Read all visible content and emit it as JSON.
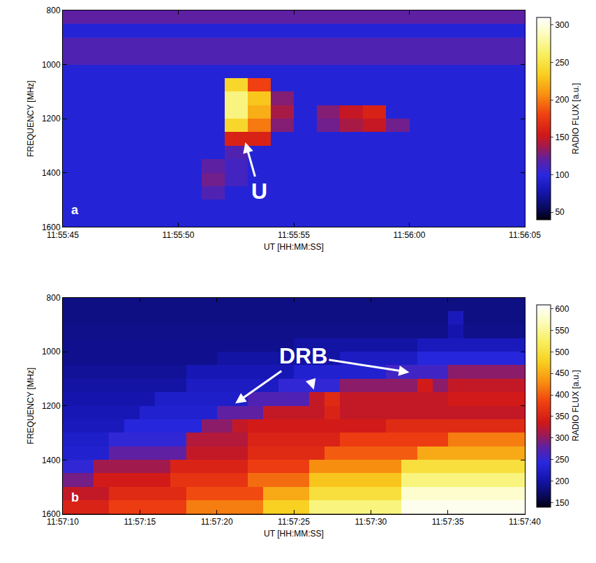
{
  "chart_data": [
    {
      "type": "heatmap",
      "label": "a",
      "x_label": "UT [HH:MM:SS]",
      "y_label": "FREQUENCY [MHz]",
      "x": [
        46545.5,
        46546.5,
        46547.5,
        46548.5,
        46549.5,
        46550.5,
        46551.5,
        46552.5,
        46553.5,
        46554.5,
        46555.5,
        46556.5,
        46557.5,
        46558.5,
        46559.5,
        46560.5,
        46561.5,
        46562.5,
        46563.5,
        46564.5
      ],
      "y": [
        825,
        875,
        925,
        975,
        1025,
        1075,
        1125,
        1175,
        1225,
        1275,
        1325,
        1375,
        1425,
        1475,
        1525,
        1575
      ],
      "z": [
        [
          120,
          120,
          120,
          120,
          120,
          120,
          120,
          120,
          120,
          120,
          120,
          120,
          120,
          120,
          120,
          120,
          120,
          120,
          120,
          120
        ],
        [
          95,
          95,
          95,
          95,
          95,
          95,
          95,
          95,
          95,
          95,
          95,
          95,
          95,
          95,
          95,
          95,
          95,
          95,
          95,
          95
        ],
        [
          115,
          115,
          115,
          115,
          115,
          115,
          115,
          115,
          115,
          115,
          115,
          115,
          115,
          115,
          115,
          115,
          115,
          115,
          115,
          115
        ],
        [
          115,
          115,
          115,
          115,
          115,
          115,
          115,
          115,
          115,
          115,
          115,
          115,
          115,
          115,
          115,
          115,
          115,
          115,
          115,
          115
        ],
        [
          95,
          95,
          95,
          95,
          95,
          95,
          95,
          95,
          95,
          95,
          95,
          95,
          95,
          95,
          95,
          95,
          95,
          95,
          95,
          95
        ],
        [
          95,
          95,
          95,
          95,
          95,
          95,
          95,
          240,
          180,
          95,
          95,
          95,
          95,
          95,
          95,
          95,
          95,
          95,
          95,
          95
        ],
        [
          95,
          95,
          95,
          95,
          95,
          95,
          95,
          270,
          230,
          130,
          95,
          95,
          95,
          95,
          95,
          95,
          95,
          95,
          95,
          95
        ],
        [
          95,
          95,
          95,
          95,
          95,
          95,
          95,
          270,
          220,
          140,
          95,
          130,
          150,
          160,
          95,
          95,
          95,
          95,
          95,
          95
        ],
        [
          95,
          95,
          95,
          95,
          95,
          95,
          95,
          240,
          200,
          130,
          95,
          125,
          140,
          150,
          125,
          95,
          95,
          95,
          95,
          95
        ],
        [
          95,
          95,
          95,
          95,
          95,
          95,
          95,
          160,
          160,
          95,
          95,
          95,
          95,
          95,
          95,
          95,
          95,
          95,
          95,
          95
        ],
        [
          95,
          95,
          95,
          95,
          95,
          95,
          95,
          115,
          95,
          95,
          95,
          95,
          95,
          95,
          95,
          95,
          95,
          95,
          95,
          95
        ],
        [
          95,
          95,
          95,
          95,
          95,
          95,
          120,
          110,
          95,
          95,
          95,
          95,
          95,
          95,
          95,
          95,
          95,
          95,
          95,
          95
        ],
        [
          95,
          95,
          95,
          95,
          95,
          95,
          125,
          110,
          95,
          95,
          95,
          95,
          95,
          95,
          95,
          95,
          95,
          95,
          95,
          95
        ],
        [
          95,
          95,
          95,
          95,
          95,
          95,
          115,
          95,
          95,
          95,
          95,
          95,
          95,
          95,
          95,
          95,
          95,
          95,
          95,
          95
        ],
        [
          95,
          95,
          95,
          95,
          95,
          95,
          95,
          95,
          95,
          95,
          95,
          95,
          95,
          95,
          95,
          95,
          95,
          95,
          95,
          95
        ],
        [
          95,
          95,
          95,
          95,
          95,
          95,
          95,
          95,
          95,
          95,
          95,
          95,
          95,
          95,
          95,
          95,
          95,
          95,
          95,
          95
        ]
      ],
      "xlim": [
        46545,
        46565
      ],
      "xticks": [
        {
          "value": 46545,
          "label": "11:55:45"
        },
        {
          "value": 46550,
          "label": "11:55:50"
        },
        {
          "value": 46555,
          "label": "11:55:55"
        },
        {
          "value": 46560,
          "label": "11:56:00"
        },
        {
          "value": 46565,
          "label": "11:56:05"
        }
      ],
      "ylim": [
        1600,
        800
      ],
      "yticks": [
        800,
        1000,
        1200,
        1400,
        1600
      ],
      "colorbar": {
        "title": "RADIO FLUX [a.u.]",
        "zlim": [
          40,
          310
        ],
        "ticks": [
          50,
          100,
          150,
          200,
          250,
          300
        ]
      },
      "annotations": [
        {
          "text": "U",
          "x": 46553.5,
          "y": 1467,
          "arrows": [
            {
              "x": 46552.9,
              "y": 1287
            }
          ]
        }
      ]
    },
    {
      "type": "heatmap",
      "label": "b",
      "x_label": "UT [HH:MM:SS]",
      "y_label": "FREQUENCY [MHz]",
      "x": [
        46630.5,
        46631.5,
        46632.5,
        46633.5,
        46634.5,
        46635.5,
        46636.5,
        46637.5,
        46638.5,
        46639.5,
        46640.5,
        46641.5,
        46642.5,
        46643.5,
        46644.5,
        46645.5,
        46646.5,
        46647.5,
        46648.5,
        46649.5,
        46650.5,
        46651.5,
        46652.5,
        46653.5,
        46654.5,
        46655.5,
        46656.5,
        46657.5,
        46658.5,
        46659.5
      ],
      "y": [
        825,
        875,
        925,
        975,
        1025,
        1075,
        1125,
        1175,
        1225,
        1275,
        1325,
        1375,
        1425,
        1475,
        1525,
        1575
      ],
      "z": [
        [
          185,
          185,
          185,
          185,
          185,
          185,
          185,
          185,
          185,
          185,
          185,
          185,
          185,
          185,
          185,
          185,
          185,
          185,
          185,
          185,
          185,
          185,
          185,
          185,
          185,
          185,
          185,
          185,
          185,
          185
        ],
        [
          185,
          185,
          185,
          185,
          185,
          185,
          185,
          185,
          185,
          185,
          185,
          185,
          185,
          185,
          185,
          185,
          185,
          185,
          185,
          185,
          185,
          185,
          185,
          185,
          185,
          215,
          185,
          185,
          185,
          185
        ],
        [
          188,
          188,
          188,
          188,
          188,
          188,
          188,
          188,
          188,
          188,
          188,
          188,
          188,
          188,
          188,
          188,
          188,
          188,
          188,
          188,
          188,
          188,
          188,
          188,
          188,
          205,
          188,
          188,
          188,
          188
        ],
        [
          190,
          190,
          190,
          190,
          190,
          190,
          190,
          190,
          190,
          190,
          190,
          190,
          190,
          190,
          190,
          200,
          200,
          200,
          200,
          200,
          200,
          200,
          200,
          215,
          215,
          215,
          215,
          215,
          215,
          215
        ],
        [
          190,
          190,
          190,
          190,
          190,
          190,
          190,
          190,
          190,
          190,
          200,
          200,
          200,
          200,
          200,
          200,
          200,
          200,
          220,
          220,
          220,
          220,
          220,
          240,
          240,
          240,
          240,
          240,
          240,
          240
        ],
        [
          195,
          195,
          195,
          195,
          195,
          195,
          195,
          195,
          210,
          210,
          210,
          210,
          210,
          210,
          210,
          230,
          230,
          230,
          230,
          230,
          230,
          260,
          260,
          260,
          260,
          300,
          300,
          300,
          300,
          300
        ],
        [
          200,
          200,
          200,
          200,
          200,
          200,
          200,
          200,
          220,
          220,
          220,
          220,
          220,
          220,
          250,
          250,
          250,
          250,
          300,
          300,
          300,
          300,
          300,
          340,
          300,
          330,
          330,
          330,
          330,
          330
        ],
        [
          205,
          205,
          205,
          205,
          205,
          205,
          225,
          225,
          225,
          225,
          225,
          225,
          270,
          270,
          270,
          270,
          330,
          360,
          330,
          330,
          330,
          330,
          330,
          330,
          330,
          340,
          340,
          340,
          340,
          340
        ],
        [
          210,
          210,
          210,
          210,
          210,
          230,
          230,
          230,
          230,
          230,
          280,
          280,
          280,
          330,
          330,
          330,
          330,
          350,
          330,
          330,
          330,
          330,
          330,
          330,
          330,
          330,
          330,
          330,
          330,
          330
        ],
        [
          215,
          215,
          215,
          215,
          240,
          240,
          240,
          240,
          240,
          300,
          300,
          330,
          340,
          340,
          340,
          340,
          340,
          340,
          340,
          340,
          340,
          360,
          360,
          360,
          360,
          360,
          360,
          360,
          360,
          360
        ],
        [
          225,
          225,
          225,
          250,
          250,
          250,
          250,
          250,
          320,
          320,
          320,
          320,
          350,
          350,
          350,
          350,
          350,
          350,
          380,
          380,
          380,
          380,
          380,
          380,
          380,
          420,
          420,
          420,
          420,
          420
        ],
        [
          230,
          230,
          230,
          280,
          280,
          280,
          280,
          280,
          330,
          330,
          330,
          330,
          360,
          360,
          360,
          360,
          360,
          400,
          400,
          400,
          400,
          400,
          400,
          450,
          450,
          450,
          450,
          450,
          450,
          450
        ],
        [
          250,
          250,
          310,
          310,
          310,
          310,
          310,
          350,
          350,
          350,
          350,
          350,
          380,
          380,
          380,
          380,
          430,
          430,
          430,
          430,
          430,
          430,
          500,
          500,
          500,
          500,
          500,
          500,
          500,
          500
        ],
        [
          290,
          290,
          340,
          340,
          340,
          340,
          340,
          370,
          370,
          370,
          370,
          370,
          410,
          410,
          410,
          410,
          470,
          470,
          470,
          470,
          470,
          470,
          540,
          540,
          540,
          540,
          540,
          540,
          540,
          540
        ],
        [
          330,
          330,
          330,
          360,
          360,
          360,
          360,
          360,
          390,
          390,
          390,
          390,
          390,
          450,
          450,
          450,
          500,
          500,
          500,
          500,
          500,
          500,
          580,
          580,
          580,
          580,
          580,
          580,
          580,
          580
        ],
        [
          350,
          350,
          350,
          380,
          380,
          380,
          380,
          380,
          420,
          420,
          420,
          420,
          420,
          480,
          480,
          480,
          540,
          540,
          540,
          540,
          540,
          540,
          600,
          600,
          600,
          600,
          600,
          600,
          600,
          600
        ]
      ],
      "xlim": [
        46630,
        46660
      ],
      "xticks": [
        {
          "value": 46630,
          "label": "11:57:10"
        },
        {
          "value": 46635,
          "label": "11:57:15"
        },
        {
          "value": 46640,
          "label": "11:57:20"
        },
        {
          "value": 46645,
          "label": "11:57:25"
        },
        {
          "value": 46650,
          "label": "11:57:30"
        },
        {
          "value": 46655,
          "label": "11:57:35"
        },
        {
          "value": 46660,
          "label": "11:57:40"
        }
      ],
      "ylim": [
        1600,
        800
      ],
      "yticks": [
        800,
        1000,
        1200,
        1400,
        1600
      ],
      "colorbar": {
        "title": "RADIO FLUX [a.u.]",
        "zlim": [
          140,
          610
        ],
        "ticks": [
          150,
          200,
          250,
          300,
          350,
          400,
          450,
          500,
          550,
          600
        ]
      },
      "annotations": [
        {
          "text": "DRB",
          "x": 46645.6,
          "y": 1015,
          "arrows": [
            {
              "x": 46641.2,
              "y": 1191
            },
            {
              "x": 46646.3,
              "y": 1140
            },
            {
              "x": 46652.5,
              "y": 1076
            }
          ]
        }
      ]
    }
  ]
}
